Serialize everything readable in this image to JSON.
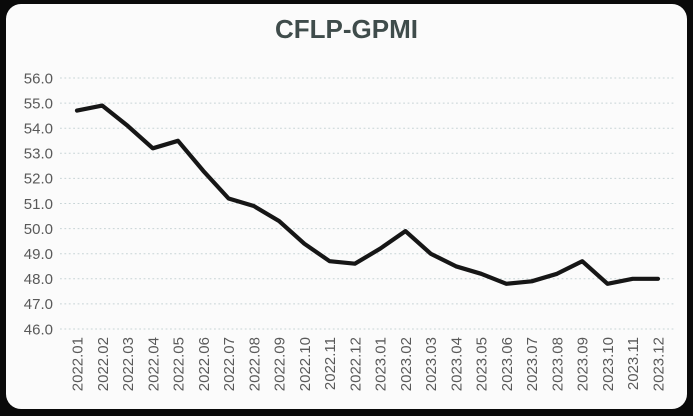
{
  "frame": {
    "outer_background": "#0a0a0a",
    "card_background": "#fbfbfb"
  },
  "chart_data": {
    "type": "line",
    "title": "CFLP-GPMI",
    "categories": [
      "2022.01",
      "2022.02",
      "2022.03",
      "2022.04",
      "2022.05",
      "2022.06",
      "2022.07",
      "2022.08",
      "2022.09",
      "2022.10",
      "2022.11",
      "2022.12",
      "2023.01",
      "2023.02",
      "2023.03",
      "2023.04",
      "2023.05",
      "2023.06",
      "2023.07",
      "2023.08",
      "2023.09",
      "2023.10",
      "2023.11",
      "2023.12"
    ],
    "values": [
      54.7,
      54.9,
      54.1,
      53.2,
      53.5,
      52.3,
      51.2,
      50.9,
      50.3,
      49.4,
      48.7,
      48.6,
      49.2,
      49.9,
      49.0,
      48.5,
      48.2,
      47.8,
      47.9,
      48.2,
      48.7,
      47.8,
      48.0,
      48.0
    ],
    "ylim": [
      46.0,
      56.0
    ],
    "y_tick_labels": [
      "56.0",
      "55.0",
      "54.0",
      "53.0",
      "52.0",
      "51.0",
      "50.0",
      "49.0",
      "48.0",
      "47.0",
      "46.0"
    ],
    "grid": "horizontal dotted lines only",
    "legend": "none",
    "x_tick_rotation_degrees": 90,
    "line_color": "#161616",
    "title_color": "#3f4c4b",
    "tick_label_color": "#595959",
    "gridline_color": "#c7d4d6"
  }
}
